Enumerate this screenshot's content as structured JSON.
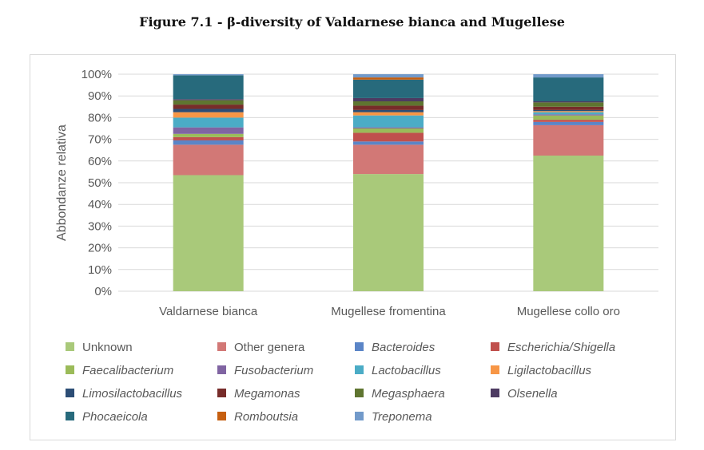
{
  "figure_title": "Figure 7.1 - β-diversity of Valdarnese bianca and Mugellese",
  "chart_data": {
    "type": "bar",
    "stacked": true,
    "normalized": true,
    "ylabel": "Abbondanze relativa",
    "ylim": [
      0,
      100
    ],
    "y_ticks": [
      "0%",
      "10%",
      "20%",
      "30%",
      "40%",
      "50%",
      "60%",
      "70%",
      "80%",
      "90%",
      "100%"
    ],
    "grid": true,
    "legend_position": "bottom",
    "categories": [
      "Valdarnese bianca",
      "Mugellese fromentina",
      "Mugellese collo oro"
    ],
    "series": [
      {
        "name": "Unknown",
        "color": "#a9c97a",
        "italic": false,
        "values": [
          53.5,
          54.0,
          62.5
        ]
      },
      {
        "name": "Other genera",
        "color": "#d27876",
        "italic": false,
        "values": [
          14.0,
          13.5,
          14.0
        ]
      },
      {
        "name": "Bacteroides",
        "color": "#5b85c7",
        "italic": true,
        "values": [
          2.0,
          1.5,
          1.5
        ]
      },
      {
        "name": "Escherichia/Shigella",
        "color": "#c0504d",
        "italic": true,
        "values": [
          1.5,
          4.0,
          1.0
        ]
      },
      {
        "name": "Faecalibacterium",
        "color": "#9bbb59",
        "italic": true,
        "values": [
          1.5,
          2.0,
          2.0
        ]
      },
      {
        "name": "Fusobacterium",
        "color": "#8064a2",
        "italic": true,
        "values": [
          3.0,
          0.5,
          0.5
        ]
      },
      {
        "name": "Lactobacillus",
        "color": "#4bacc6",
        "italic": true,
        "values": [
          4.5,
          5.5,
          1.0
        ]
      },
      {
        "name": "Ligilactobacillus",
        "color": "#f79646",
        "italic": true,
        "values": [
          2.5,
          1.5,
          0.5
        ]
      },
      {
        "name": "Limosilactobacillus",
        "color": "#2c4d75",
        "italic": true,
        "values": [
          1.5,
          1.0,
          0.5
        ]
      },
      {
        "name": "Megamonas",
        "color": "#772c2a",
        "italic": true,
        "values": [
          2.0,
          2.0,
          1.5
        ]
      },
      {
        "name": "Megasphaera",
        "color": "#5f7530",
        "italic": true,
        "values": [
          2.0,
          2.0,
          2.0
        ]
      },
      {
        "name": "Olsenella",
        "color": "#4d3b62",
        "italic": true,
        "values": [
          0.5,
          1.5,
          0.5
        ]
      },
      {
        "name": "Phocaeicola",
        "color": "#276a7c",
        "italic": true,
        "values": [
          11.0,
          8.5,
          11.0
        ]
      },
      {
        "name": "Romboutsia",
        "color": "#c65f10",
        "italic": true,
        "values": [
          0.0,
          1.0,
          0.0
        ]
      },
      {
        "name": "Treponema",
        "color": "#729aca",
        "italic": true,
        "values": [
          0.5,
          1.5,
          1.5
        ]
      }
    ]
  }
}
